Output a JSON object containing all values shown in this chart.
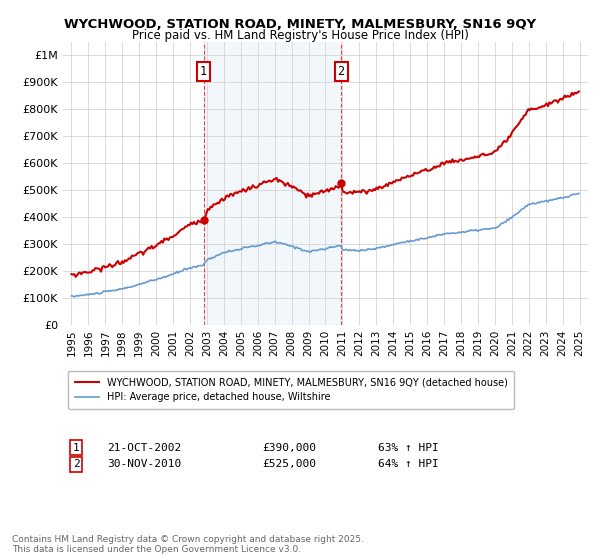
{
  "title": "WYCHWOOD, STATION ROAD, MINETY, MALMESBURY, SN16 9QY",
  "subtitle": "Price paid vs. HM Land Registry's House Price Index (HPI)",
  "legend_line1": "WYCHWOOD, STATION ROAD, MINETY, MALMESBURY, SN16 9QY (detached house)",
  "legend_line2": "HPI: Average price, detached house, Wiltshire",
  "purchase1_label": "1",
  "purchase1_date": "21-OCT-2002",
  "purchase1_price": "£390,000",
  "purchase1_hpi": "63% ↑ HPI",
  "purchase1_x": 2002.8,
  "purchase1_y": 390000,
  "purchase2_label": "2",
  "purchase2_date": "30-NOV-2010",
  "purchase2_price": "£525,000",
  "purchase2_hpi": "64% ↑ HPI",
  "purchase2_x": 2010.92,
  "purchase2_y": 525000,
  "ylim": [
    0,
    1050000
  ],
  "xlim": [
    1994.5,
    2025.5
  ],
  "red_color": "#cc0000",
  "blue_color": "#6699cc",
  "shading_color": "#dce9f5",
  "footer": "Contains HM Land Registry data © Crown copyright and database right 2025.\nThis data is licensed under the Open Government Licence v3.0.",
  "yticks": [
    0,
    100000,
    200000,
    300000,
    400000,
    500000,
    600000,
    700000,
    800000,
    900000,
    1000000
  ],
  "ytick_labels": [
    "£0",
    "£100K",
    "£200K",
    "£300K",
    "£400K",
    "£500K",
    "£600K",
    "£700K",
    "£800K",
    "£900K",
    "£1M"
  ]
}
